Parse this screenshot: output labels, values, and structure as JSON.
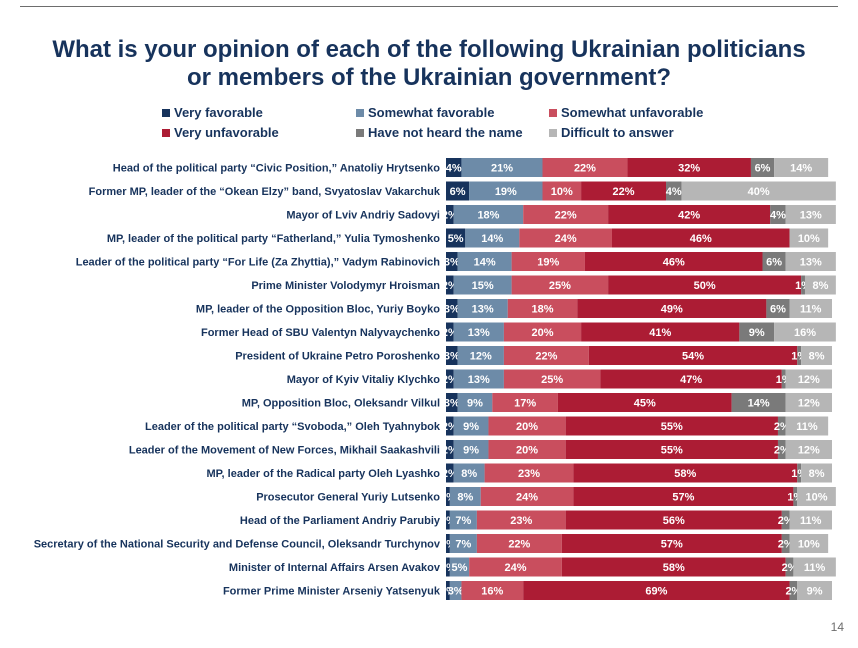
{
  "title_line1": "What is your opinion of each of the following Ukrainian politicians",
  "title_line2": "or members of the Ukrainian government?",
  "page_number": "14",
  "colors": {
    "very_favorable": "#17335c",
    "somewhat_favorable": "#6d8ba8",
    "somewhat_unfavorable": "#c94e5e",
    "very_unfavorable": "#ac1c34",
    "not_heard": "#7a7a7a",
    "difficult": "#b6b6b6"
  },
  "chart_data": {
    "type": "bar",
    "orientation": "horizontal",
    "stacked": true,
    "xlim": [
      0,
      100
    ],
    "unit": "%",
    "legend": [
      {
        "key": "very_favorable",
        "label": "Very favorable"
      },
      {
        "key": "somewhat_favorable",
        "label": "Somewhat favorable"
      },
      {
        "key": "somewhat_unfavorable",
        "label": "Somewhat unfavorable"
      },
      {
        "key": "very_unfavorable",
        "label": "Very unfavorable"
      },
      {
        "key": "not_heard",
        "label": "Have not heard the name"
      },
      {
        "key": "difficult",
        "label": "Difficult to answer"
      }
    ],
    "series_order": [
      "very_favorable",
      "somewhat_favorable",
      "somewhat_unfavorable",
      "very_unfavorable",
      "not_heard",
      "difficult"
    ],
    "rows": [
      {
        "label": "Head of the political party “Civic Position,” Anatoliy Hrytsenko",
        "values": [
          4,
          21,
          22,
          32,
          6,
          14
        ],
        "labels": [
          "4%",
          "21%",
          "22%",
          "32%",
          "6%",
          "14%"
        ]
      },
      {
        "label": "Former MP, leader of the “Okean Elzy” band, Svyatoslav Vakarchuk",
        "values": [
          6,
          19,
          10,
          22,
          4,
          40
        ],
        "labels": [
          "6%",
          "19%",
          "10%",
          "22%",
          "4%",
          "40%"
        ]
      },
      {
        "label": "Mayor of Lviv Andriy Sadovyi",
        "values": [
          2,
          18,
          22,
          42,
          4,
          13
        ],
        "labels": [
          "2%",
          "18%",
          "22%",
          "42%",
          "4%",
          "13%"
        ]
      },
      {
        "label": "MP, leader of the political party “Fatherland,” Yulia Tymoshenko",
        "values": [
          5,
          14,
          24,
          46,
          0,
          10
        ],
        "labels": [
          "5%",
          "14%",
          "24%",
          "46%",
          "",
          "10%"
        ]
      },
      {
        "label": "Leader of the political party “For Life (Za Zhyttia),” Vadym Rabinovich",
        "values": [
          3,
          14,
          19,
          46,
          6,
          13
        ],
        "labels": [
          "3%",
          "14%",
          "19%",
          "46%",
          "6%",
          "13%"
        ]
      },
      {
        "label": "Prime Minister Volodymyr Hroisman",
        "values": [
          2,
          15,
          25,
          50,
          1,
          8
        ],
        "labels": [
          "2%",
          "15%",
          "25%",
          "50%",
          "1%",
          "8%"
        ]
      },
      {
        "label": "MP, leader of the Opposition Bloc, Yuriy Boyko",
        "values": [
          3,
          13,
          18,
          49,
          6,
          11
        ],
        "labels": [
          "3%",
          "13%",
          "18%",
          "49%",
          "6%",
          "11%"
        ]
      },
      {
        "label": "Former Head of SBU Valentyn Nalyvaychenko",
        "values": [
          2,
          13,
          20,
          41,
          9,
          16
        ],
        "labels": [
          "2%",
          "13%",
          "20%",
          "41%",
          "9%",
          "16%"
        ]
      },
      {
        "label": "President of Ukraine Petro Poroshenko",
        "values": [
          3,
          12,
          22,
          54,
          1,
          8
        ],
        "labels": [
          "3%",
          "12%",
          "22%",
          "54%",
          "1%",
          "8%"
        ]
      },
      {
        "label": "Mayor of Kyiv Vitaliy Klychko",
        "values": [
          2,
          13,
          25,
          47,
          1,
          12
        ],
        "labels": [
          "2%",
          "13%",
          "25%",
          "47%",
          "1%",
          "12%"
        ]
      },
      {
        "label": "MP, Opposition Bloc, Oleksandr Vilkul",
        "values": [
          3,
          9,
          17,
          45,
          14,
          12
        ],
        "labels": [
          "3%",
          "9%",
          "17%",
          "45%",
          "14%",
          "12%"
        ]
      },
      {
        "label": "Leader of the political party “Svoboda,” Oleh Tyahnybok",
        "values": [
          2,
          9,
          20,
          55,
          2,
          11
        ],
        "labels": [
          "2%",
          "9%",
          "20%",
          "55%",
          "2%",
          "11%"
        ]
      },
      {
        "label": "Leader of the Movement of New Forces, Mikhail Saakashvili",
        "values": [
          2,
          9,
          20,
          55,
          2,
          12
        ],
        "labels": [
          "2%",
          "9%",
          "20%",
          "55%",
          "2%",
          "12%"
        ]
      },
      {
        "label": "MP, leader of the Radical party Oleh Lyashko",
        "values": [
          2,
          8,
          23,
          58,
          1,
          8
        ],
        "labels": [
          "2%",
          "8%",
          "23%",
          "58%",
          "1%",
          "8%"
        ]
      },
      {
        "label": "Prosecutor General Yuriy Lutsenko",
        "values": [
          1,
          8,
          24,
          57,
          1,
          10
        ],
        "labels": [
          "1%",
          "8%",
          "24%",
          "57%",
          "1%",
          "10%"
        ]
      },
      {
        "label": "Head of the Parliament Andriy Parubiy",
        "values": [
          1,
          7,
          23,
          56,
          2,
          11
        ],
        "labels": [
          "1%",
          "7%",
          "23%",
          "56%",
          "2%",
          "11%"
        ]
      },
      {
        "label": "Secretary of the National Security and Defense Council, Oleksandr Turchynov",
        "values": [
          1,
          7,
          22,
          57,
          2,
          10
        ],
        "labels": [
          "1%",
          "7%",
          "22%",
          "57%",
          "2%",
          "10%"
        ]
      },
      {
        "label": "Minister of Internal Affairs Arsen Avakov",
        "values": [
          1,
          5,
          24,
          58,
          2,
          11
        ],
        "labels": [
          "1%",
          "5%",
          "24%",
          "58%",
          "2%",
          "11%"
        ]
      },
      {
        "label": "Former Prime Minister Arseniy Yatsenyuk",
        "values": [
          1,
          3,
          16,
          69,
          2,
          9
        ],
        "labels": [
          "1%",
          "3%",
          "16%",
          "69%",
          "2%",
          "9%"
        ]
      }
    ]
  }
}
